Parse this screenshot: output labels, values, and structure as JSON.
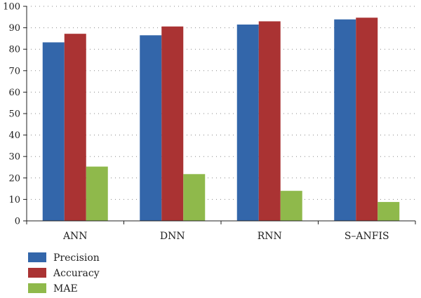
{
  "chart_data": {
    "type": "bar",
    "title": "",
    "xlabel": "",
    "ylabel": "",
    "categories": [
      "ANN",
      "DNN",
      "RNN",
      "S–ANFIS"
    ],
    "ylim": [
      0,
      100
    ],
    "yticks": [
      0,
      10,
      20,
      30,
      40,
      50,
      60,
      70,
      80,
      90,
      100
    ],
    "grid": "horizontal-dotted",
    "legend_position": "bottom-left",
    "series": [
      {
        "name": "Precision",
        "color": "#3366aa",
        "values": [
          83.2,
          86.5,
          91.5,
          93.9
        ]
      },
      {
        "name": "Accuracy",
        "color": "#aa3333",
        "values": [
          87.2,
          90.6,
          93.0,
          94.7
        ]
      },
      {
        "name": "MAE",
        "color": "#8fb94b",
        "values": [
          25.3,
          21.8,
          14.0,
          8.8
        ]
      }
    ]
  }
}
